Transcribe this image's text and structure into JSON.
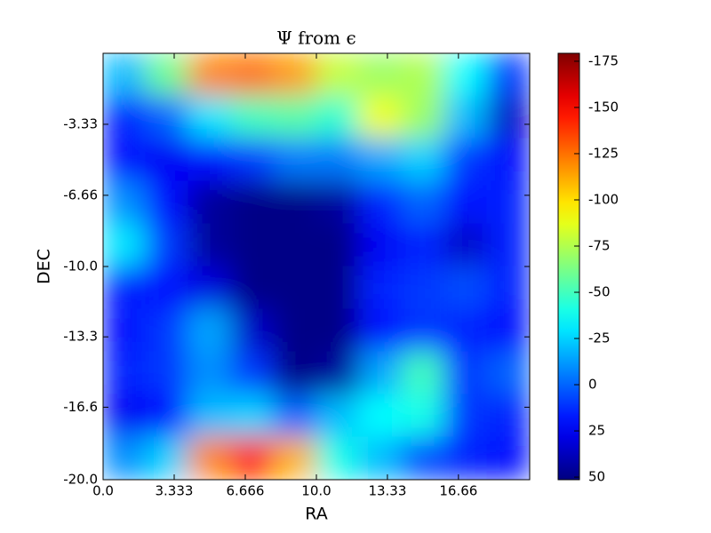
{
  "chart_data": {
    "type": "heatmap",
    "title": "Ψ from ϵ",
    "x_label": "RA",
    "y_label": "DEC",
    "xlim": [
      0,
      20
    ],
    "ylim": [
      0,
      -20
    ],
    "xticks": [
      {
        "value": 0,
        "label": "0.0"
      },
      3.333,
      6.666,
      {
        "value": 10,
        "label": "10.0"
      },
      13.33,
      16.66
    ],
    "yticks": [
      -3.33,
      -6.66,
      {
        "value": -10,
        "label": "-10.0"
      },
      -13.3,
      -16.6,
      {
        "value": -20,
        "label": "-20.0"
      }
    ],
    "colormap": "jet",
    "clim": [
      51.4,
      -179.3
    ],
    "colorbar_ticks": [
      50,
      25,
      0,
      -25,
      -50,
      -75,
      -100,
      -125,
      -150,
      -175
    ],
    "z": [
      [
        -20,
        -60,
        -120,
        -125,
        -115,
        -80,
        -70,
        -75,
        -35,
        10
      ],
      [
        15,
        0,
        -30,
        -50,
        -55,
        -45,
        -90,
        -70,
        -20,
        35
      ],
      [
        20,
        25,
        20,
        10,
        -5,
        -5,
        -15,
        -25,
        10,
        20
      ],
      [
        -10,
        20,
        45,
        50,
        50,
        45,
        15,
        0,
        20,
        15
      ],
      [
        -30,
        10,
        45,
        50,
        50,
        50,
        25,
        15,
        35,
        15
      ],
      [
        15,
        20,
        30,
        50,
        50,
        50,
        15,
        10,
        5,
        15
      ],
      [
        20,
        10,
        -15,
        35,
        50,
        50,
        20,
        10,
        15,
        20
      ],
      [
        15,
        10,
        -10,
        10,
        50,
        45,
        -15,
        -50,
        10,
        0
      ],
      [
        25,
        20,
        -20,
        -25,
        0,
        -20,
        -35,
        -40,
        10,
        15
      ],
      [
        -10,
        -25,
        -120,
        -145,
        -110,
        -40,
        -20,
        5,
        15,
        20
      ]
    ]
  }
}
